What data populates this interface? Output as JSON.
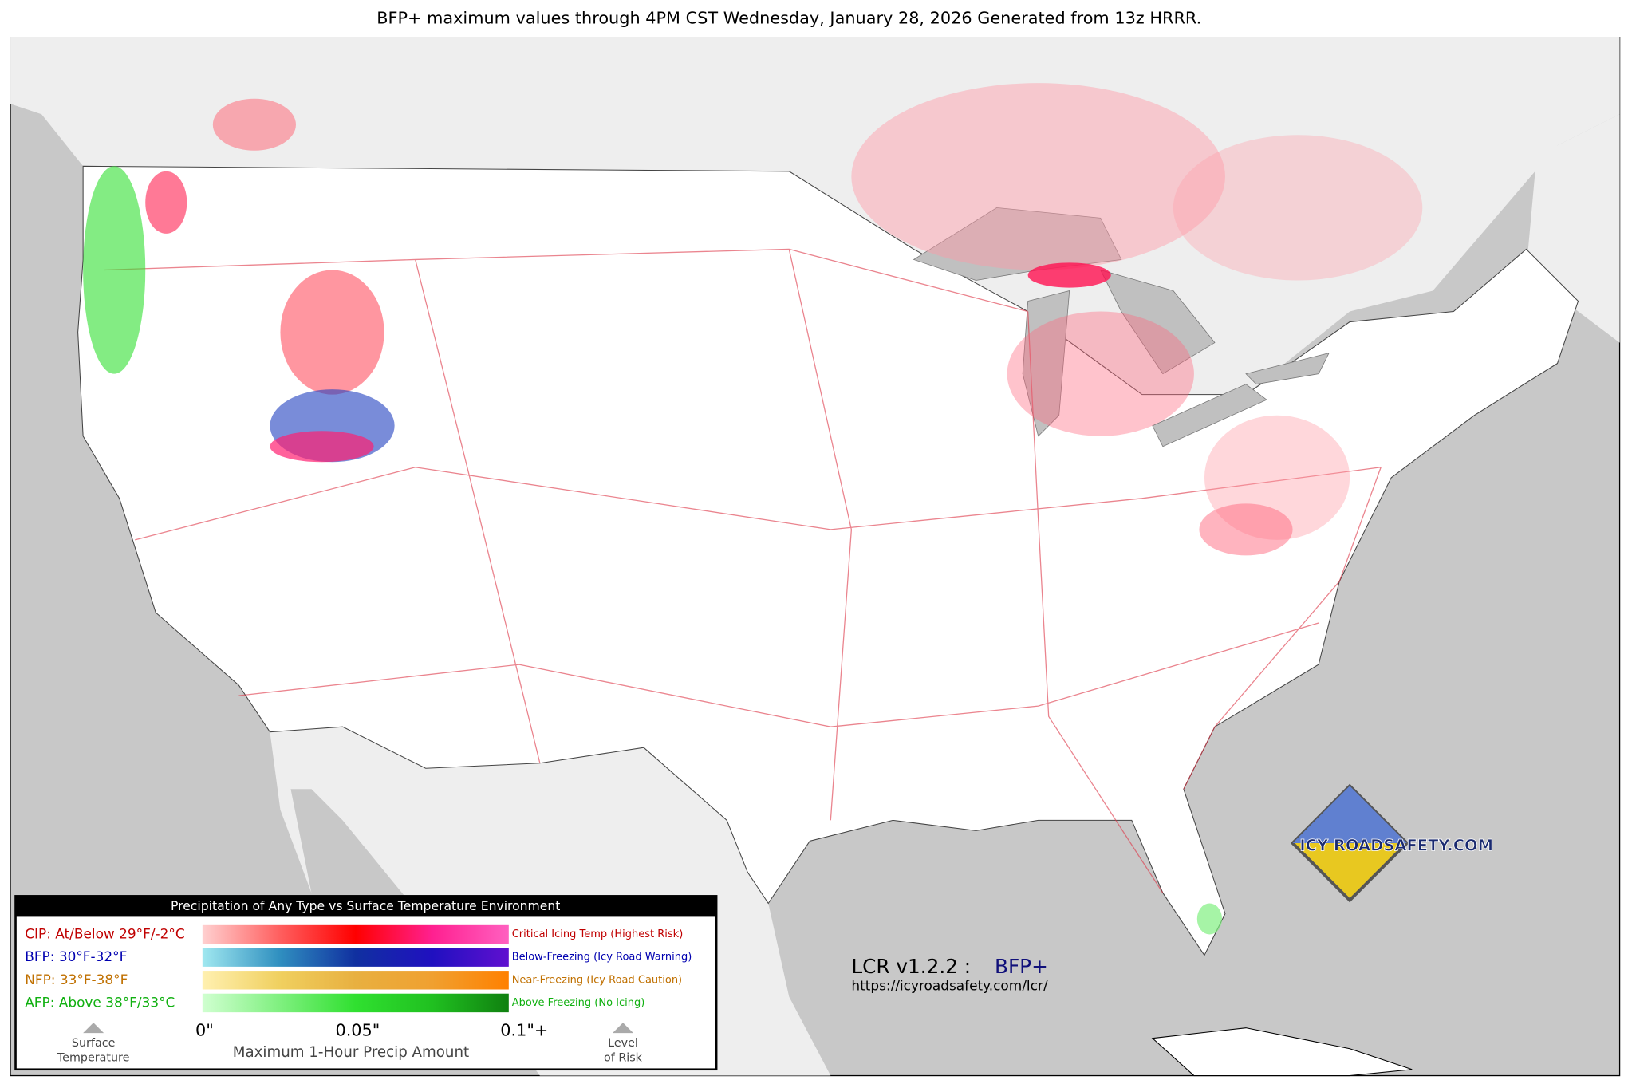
{
  "title": "BFP+ maximum values through 4PM CST Wednesday, January 28, 2026 Generated from 13z HRRR.",
  "legend": {
    "header": "Precipitation of Any Type vs Surface Temperature Environment",
    "rows": [
      {
        "label": "CIP: At/Below 29°F/-2°C",
        "description": "Critical Icing Temp (Highest Risk)",
        "color": "#c00000",
        "colors": [
          "#ffd0d0",
          "#ff6060",
          "#ff0000",
          "#ff2090",
          "#ff60c0"
        ]
      },
      {
        "label": "BFP: 30°F-32°F",
        "description": "Below-Freezing (Icy Road Warning)",
        "color": "#0000b0",
        "colors": [
          "#a0e8f0",
          "#3090c0",
          "#1030a0",
          "#2010c0",
          "#6010d0"
        ]
      },
      {
        "label": "NFP: 33°F-38°F",
        "description": "Near-Freezing (Icy Road Caution)",
        "color": "#c07000",
        "colors": [
          "#fff0b0",
          "#f0d060",
          "#e8b040",
          "#f0a030",
          "#ff8000"
        ]
      },
      {
        "label": "AFP: Above 38°F/33°C",
        "description": "Above Freezing (No Icing)",
        "color": "#10b010",
        "colors": [
          "#d0ffd0",
          "#80f080",
          "#30e030",
          "#20c020",
          "#108010"
        ]
      }
    ],
    "ticks": [
      "0\"",
      "0.05\"",
      "0.1\"+"
    ],
    "axis_label": "Maximum 1-Hour Precip Amount",
    "left_arrow_label": [
      "Surface",
      "Temperature"
    ],
    "right_arrow_label": [
      "Level",
      "of Risk"
    ]
  },
  "version": "LCR v1.2.2 :",
  "product": "BFP+",
  "url": "https://icyroadsafety.com/lcr/",
  "logo": "ICY ROADSAFETY.COM"
}
